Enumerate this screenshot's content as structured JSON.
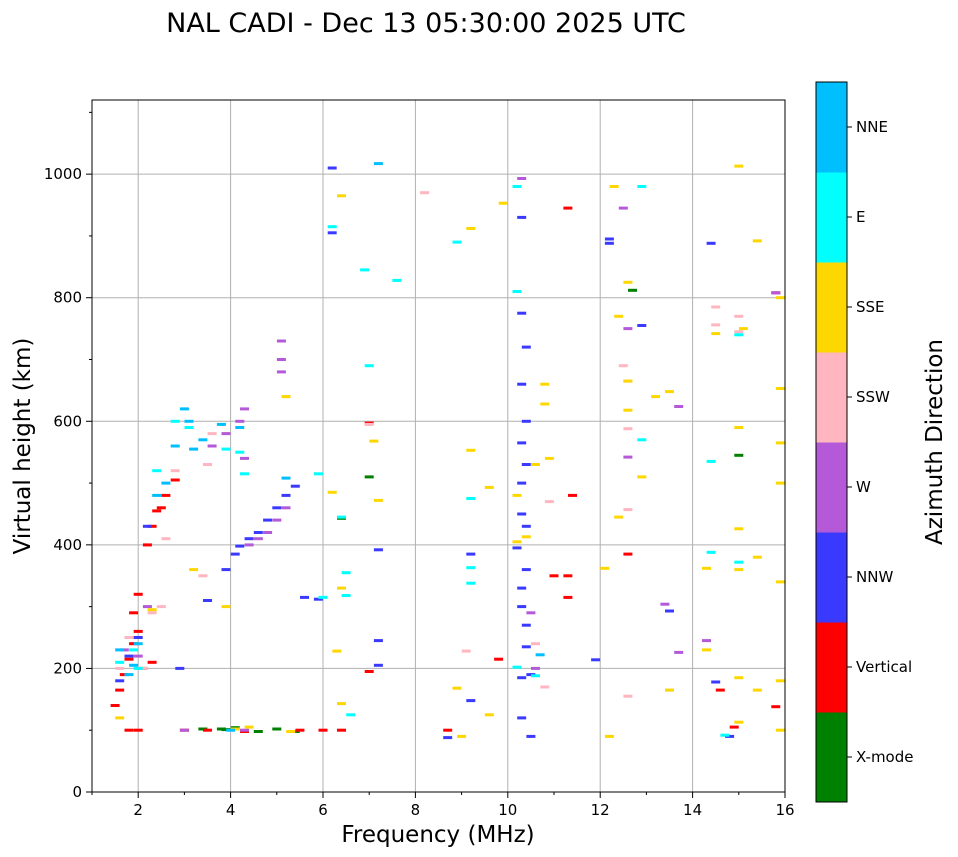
{
  "chart_data": {
    "type": "scatter",
    "title": "NAL CADI - Dec 13 05:30:00 2025 UTC",
    "xlabel": "Frequency (MHz)",
    "ylabel": "Virtual height (km)",
    "xlim": [
      1,
      16
    ],
    "ylim": [
      0,
      1120
    ],
    "xticks": [
      2,
      4,
      6,
      8,
      10,
      12,
      14,
      16
    ],
    "yticks": [
      0,
      200,
      400,
      600,
      800,
      1000
    ],
    "grid": true,
    "colorbar": {
      "label": "Azimuth Direction",
      "categories": [
        {
          "name": "X-mode",
          "color": "#008000"
        },
        {
          "name": "Vertical",
          "color": "#ff0000"
        },
        {
          "name": "NNW",
          "color": "#3a3aff"
        },
        {
          "name": "W",
          "color": "#b45ad8"
        },
        {
          "name": "SSW",
          "color": "#ffb6c1"
        },
        {
          "name": "SSE",
          "color": "#ffd700"
        },
        {
          "name": "E",
          "color": "#00ffff"
        },
        {
          "name": "NNE",
          "color": "#00bfff"
        }
      ]
    },
    "series": [
      {
        "name": "X-mode",
        "points": [
          [
            3.4,
            102
          ],
          [
            3.8,
            102
          ],
          [
            4.1,
            104
          ],
          [
            4.6,
            98
          ],
          [
            5.0,
            102
          ],
          [
            5.4,
            98
          ],
          [
            6.4,
            443
          ],
          [
            7.0,
            510
          ],
          [
            12.7,
            812
          ],
          [
            15.0,
            545
          ],
          [
            3.9,
            101
          ]
        ]
      },
      {
        "name": "Vertical",
        "points": [
          [
            1.5,
            140
          ],
          [
            1.6,
            165
          ],
          [
            1.7,
            190
          ],
          [
            1.8,
            215
          ],
          [
            1.9,
            240
          ],
          [
            2.0,
            260
          ],
          [
            2.1,
            200
          ],
          [
            2.2,
            400
          ],
          [
            2.3,
            430
          ],
          [
            2.4,
            455
          ],
          [
            2.6,
            480
          ],
          [
            2.8,
            505
          ],
          [
            1.9,
            290
          ],
          [
            2.0,
            320
          ],
          [
            1.8,
            100
          ],
          [
            2.0,
            100
          ],
          [
            2.3,
            210
          ],
          [
            2.5,
            460
          ],
          [
            3.0,
            100
          ],
          [
            3.5,
            100
          ],
          [
            4.3,
            98
          ],
          [
            5.5,
            100
          ],
          [
            6.0,
            100
          ],
          [
            6.4,
            100
          ],
          [
            7.0,
            597
          ],
          [
            7.0,
            195
          ],
          [
            8.7,
            100
          ],
          [
            9.8,
            215
          ],
          [
            11.0,
            350
          ],
          [
            11.3,
            945
          ],
          [
            11.4,
            480
          ],
          [
            11.3,
            315
          ],
          [
            11.3,
            350
          ],
          [
            12.6,
            385
          ],
          [
            14.6,
            165
          ],
          [
            14.9,
            105
          ],
          [
            15.8,
            138
          ],
          [
            15.8,
            808
          ]
        ]
      },
      {
        "name": "NNW",
        "points": [
          [
            1.6,
            180
          ],
          [
            1.8,
            220
          ],
          [
            2.0,
            250
          ],
          [
            2.2,
            430
          ],
          [
            2.9,
            200
          ],
          [
            3.5,
            310
          ],
          [
            3.9,
            360
          ],
          [
            4.1,
            385
          ],
          [
            4.2,
            398
          ],
          [
            4.4,
            410
          ],
          [
            4.6,
            420
          ],
          [
            4.8,
            440
          ],
          [
            5.0,
            460
          ],
          [
            5.2,
            480
          ],
          [
            5.4,
            495
          ],
          [
            5.6,
            315
          ],
          [
            5.9,
            312
          ],
          [
            6.2,
            1010
          ],
          [
            6.2,
            905
          ],
          [
            7.2,
            392
          ],
          [
            7.2,
            245
          ],
          [
            7.2,
            205
          ],
          [
            8.7,
            88
          ],
          [
            9.2,
            385
          ],
          [
            9.2,
            148
          ],
          [
            10.3,
            930
          ],
          [
            10.3,
            775
          ],
          [
            10.4,
            720
          ],
          [
            10.3,
            660
          ],
          [
            10.4,
            600
          ],
          [
            10.3,
            565
          ],
          [
            10.4,
            530
          ],
          [
            10.3,
            500
          ],
          [
            10.3,
            450
          ],
          [
            10.4,
            430
          ],
          [
            10.2,
            395
          ],
          [
            10.4,
            360
          ],
          [
            10.3,
            330
          ],
          [
            10.3,
            300
          ],
          [
            10.4,
            270
          ],
          [
            10.4,
            235
          ],
          [
            10.3,
            185
          ],
          [
            10.5,
            190
          ],
          [
            10.3,
            120
          ],
          [
            10.5,
            90
          ],
          [
            12.2,
            895
          ],
          [
            12.2,
            888
          ],
          [
            12.9,
            755
          ],
          [
            13.5,
            293
          ],
          [
            11.9,
            214
          ],
          [
            14.4,
            888
          ],
          [
            14.5,
            178
          ],
          [
            14.8,
            90
          ]
        ]
      },
      {
        "name": "W",
        "points": [
          [
            1.7,
            230
          ],
          [
            2.0,
            220
          ],
          [
            2.2,
            300
          ],
          [
            3.0,
            100
          ],
          [
            3.6,
            560
          ],
          [
            3.9,
            580
          ],
          [
            4.2,
            600
          ],
          [
            4.3,
            540
          ],
          [
            4.3,
            620
          ],
          [
            4.4,
            400
          ],
          [
            4.6,
            410
          ],
          [
            4.8,
            420
          ],
          [
            5.0,
            440
          ],
          [
            5.1,
            700
          ],
          [
            5.1,
            730
          ],
          [
            5.1,
            680
          ],
          [
            5.2,
            460
          ],
          [
            4.3,
            100
          ],
          [
            10.3,
            993
          ],
          [
            10.5,
            290
          ],
          [
            10.6,
            200
          ],
          [
            12.5,
            945
          ],
          [
            12.6,
            750
          ],
          [
            12.6,
            542
          ],
          [
            13.4,
            304
          ],
          [
            13.7,
            624
          ],
          [
            13.7,
            226
          ],
          [
            14.3,
            245
          ],
          [
            15.8,
            808
          ]
        ]
      },
      {
        "name": "SSW",
        "points": [
          [
            1.6,
            200
          ],
          [
            1.8,
            250
          ],
          [
            2.1,
            200
          ],
          [
            2.3,
            290
          ],
          [
            2.5,
            300
          ],
          [
            2.6,
            410
          ],
          [
            2.8,
            520
          ],
          [
            3.4,
            350
          ],
          [
            3.5,
            530
          ],
          [
            3.6,
            580
          ],
          [
            7.0,
            595
          ],
          [
            8.2,
            970
          ],
          [
            10.6,
            240
          ],
          [
            10.8,
            170
          ],
          [
            10.9,
            470
          ],
          [
            12.5,
            690
          ],
          [
            12.6,
            665
          ],
          [
            12.6,
            588
          ],
          [
            12.6,
            457
          ],
          [
            12.6,
            155
          ],
          [
            14.5,
            785
          ],
          [
            14.5,
            756
          ],
          [
            15.0,
            770
          ],
          [
            15.0,
            745
          ],
          [
            9.1,
            228
          ]
        ]
      },
      {
        "name": "SSE",
        "points": [
          [
            1.6,
            120
          ],
          [
            2.3,
            295
          ],
          [
            3.2,
            360
          ],
          [
            3.9,
            300
          ],
          [
            4.1,
            102
          ],
          [
            4.4,
            105
          ],
          [
            5.2,
            640
          ],
          [
            5.3,
            98
          ],
          [
            6.2,
            485
          ],
          [
            6.3,
            228
          ],
          [
            6.4,
            965
          ],
          [
            6.4,
            143
          ],
          [
            6.4,
            330
          ],
          [
            7.1,
            568
          ],
          [
            7.2,
            472
          ],
          [
            8.9,
            168
          ],
          [
            9.0,
            90
          ],
          [
            9.2,
            912
          ],
          [
            9.2,
            553
          ],
          [
            9.6,
            125
          ],
          [
            9.6,
            493
          ],
          [
            9.9,
            953
          ],
          [
            10.2,
            405
          ],
          [
            10.2,
            480
          ],
          [
            10.4,
            413
          ],
          [
            10.6,
            530
          ],
          [
            10.8,
            660
          ],
          [
            10.8,
            628
          ],
          [
            10.9,
            540
          ],
          [
            12.2,
            90
          ],
          [
            12.3,
            980
          ],
          [
            12.4,
            445
          ],
          [
            12.4,
            770
          ],
          [
            12.6,
            825
          ],
          [
            12.6,
            665
          ],
          [
            12.6,
            618
          ],
          [
            12.9,
            510
          ],
          [
            13.2,
            640
          ],
          [
            13.5,
            648
          ],
          [
            13.5,
            165
          ],
          [
            14.3,
            362
          ],
          [
            14.3,
            230
          ],
          [
            14.5,
            742
          ],
          [
            15.0,
            1013
          ],
          [
            15.1,
            750
          ],
          [
            15.0,
            590
          ],
          [
            15.0,
            426
          ],
          [
            15.0,
            360
          ],
          [
            15.0,
            185
          ],
          [
            15.0,
            113
          ],
          [
            15.4,
            892
          ],
          [
            15.4,
            380
          ],
          [
            15.4,
            165
          ],
          [
            15.9,
            653
          ],
          [
            15.9,
            565
          ],
          [
            15.9,
            500
          ],
          [
            15.9,
            340
          ],
          [
            15.9,
            180
          ],
          [
            15.9,
            100
          ],
          [
            15.9,
            800
          ],
          [
            12.1,
            362
          ]
        ]
      },
      {
        "name": "E",
        "points": [
          [
            1.6,
            210
          ],
          [
            1.9,
            230
          ],
          [
            2.0,
            200
          ],
          [
            2.4,
            520
          ],
          [
            2.8,
            600
          ],
          [
            3.1,
            590
          ],
          [
            3.9,
            555
          ],
          [
            4.2,
            550
          ],
          [
            4.3,
            515
          ],
          [
            5.9,
            515
          ],
          [
            6.0,
            315
          ],
          [
            6.2,
            915
          ],
          [
            6.4,
            445
          ],
          [
            6.5,
            355
          ],
          [
            6.5,
            318
          ],
          [
            6.6,
            125
          ],
          [
            6.9,
            845
          ],
          [
            7.0,
            690
          ],
          [
            7.6,
            828
          ],
          [
            8.9,
            890
          ],
          [
            9.2,
            363
          ],
          [
            9.2,
            338
          ],
          [
            9.2,
            475
          ],
          [
            10.2,
            980
          ],
          [
            10.2,
            810
          ],
          [
            10.2,
            202
          ],
          [
            10.6,
            188
          ],
          [
            12.9,
            980
          ],
          [
            12.9,
            570
          ],
          [
            14.4,
            535
          ],
          [
            14.4,
            388
          ],
          [
            14.7,
            92
          ],
          [
            15.0,
            740
          ],
          [
            15.0,
            372
          ]
        ]
      },
      {
        "name": "NNE",
        "points": [
          [
            1.6,
            230
          ],
          [
            1.8,
            190
          ],
          [
            1.9,
            205
          ],
          [
            2.0,
            240
          ],
          [
            2.4,
            480
          ],
          [
            2.6,
            500
          ],
          [
            2.8,
            560
          ],
          [
            3.0,
            620
          ],
          [
            3.1,
            600
          ],
          [
            3.2,
            555
          ],
          [
            3.4,
            570
          ],
          [
            3.8,
            595
          ],
          [
            4.2,
            590
          ],
          [
            4.0,
            100
          ],
          [
            5.2,
            508
          ],
          [
            7.2,
            1017
          ],
          [
            10.7,
            222
          ]
        ]
      }
    ]
  }
}
